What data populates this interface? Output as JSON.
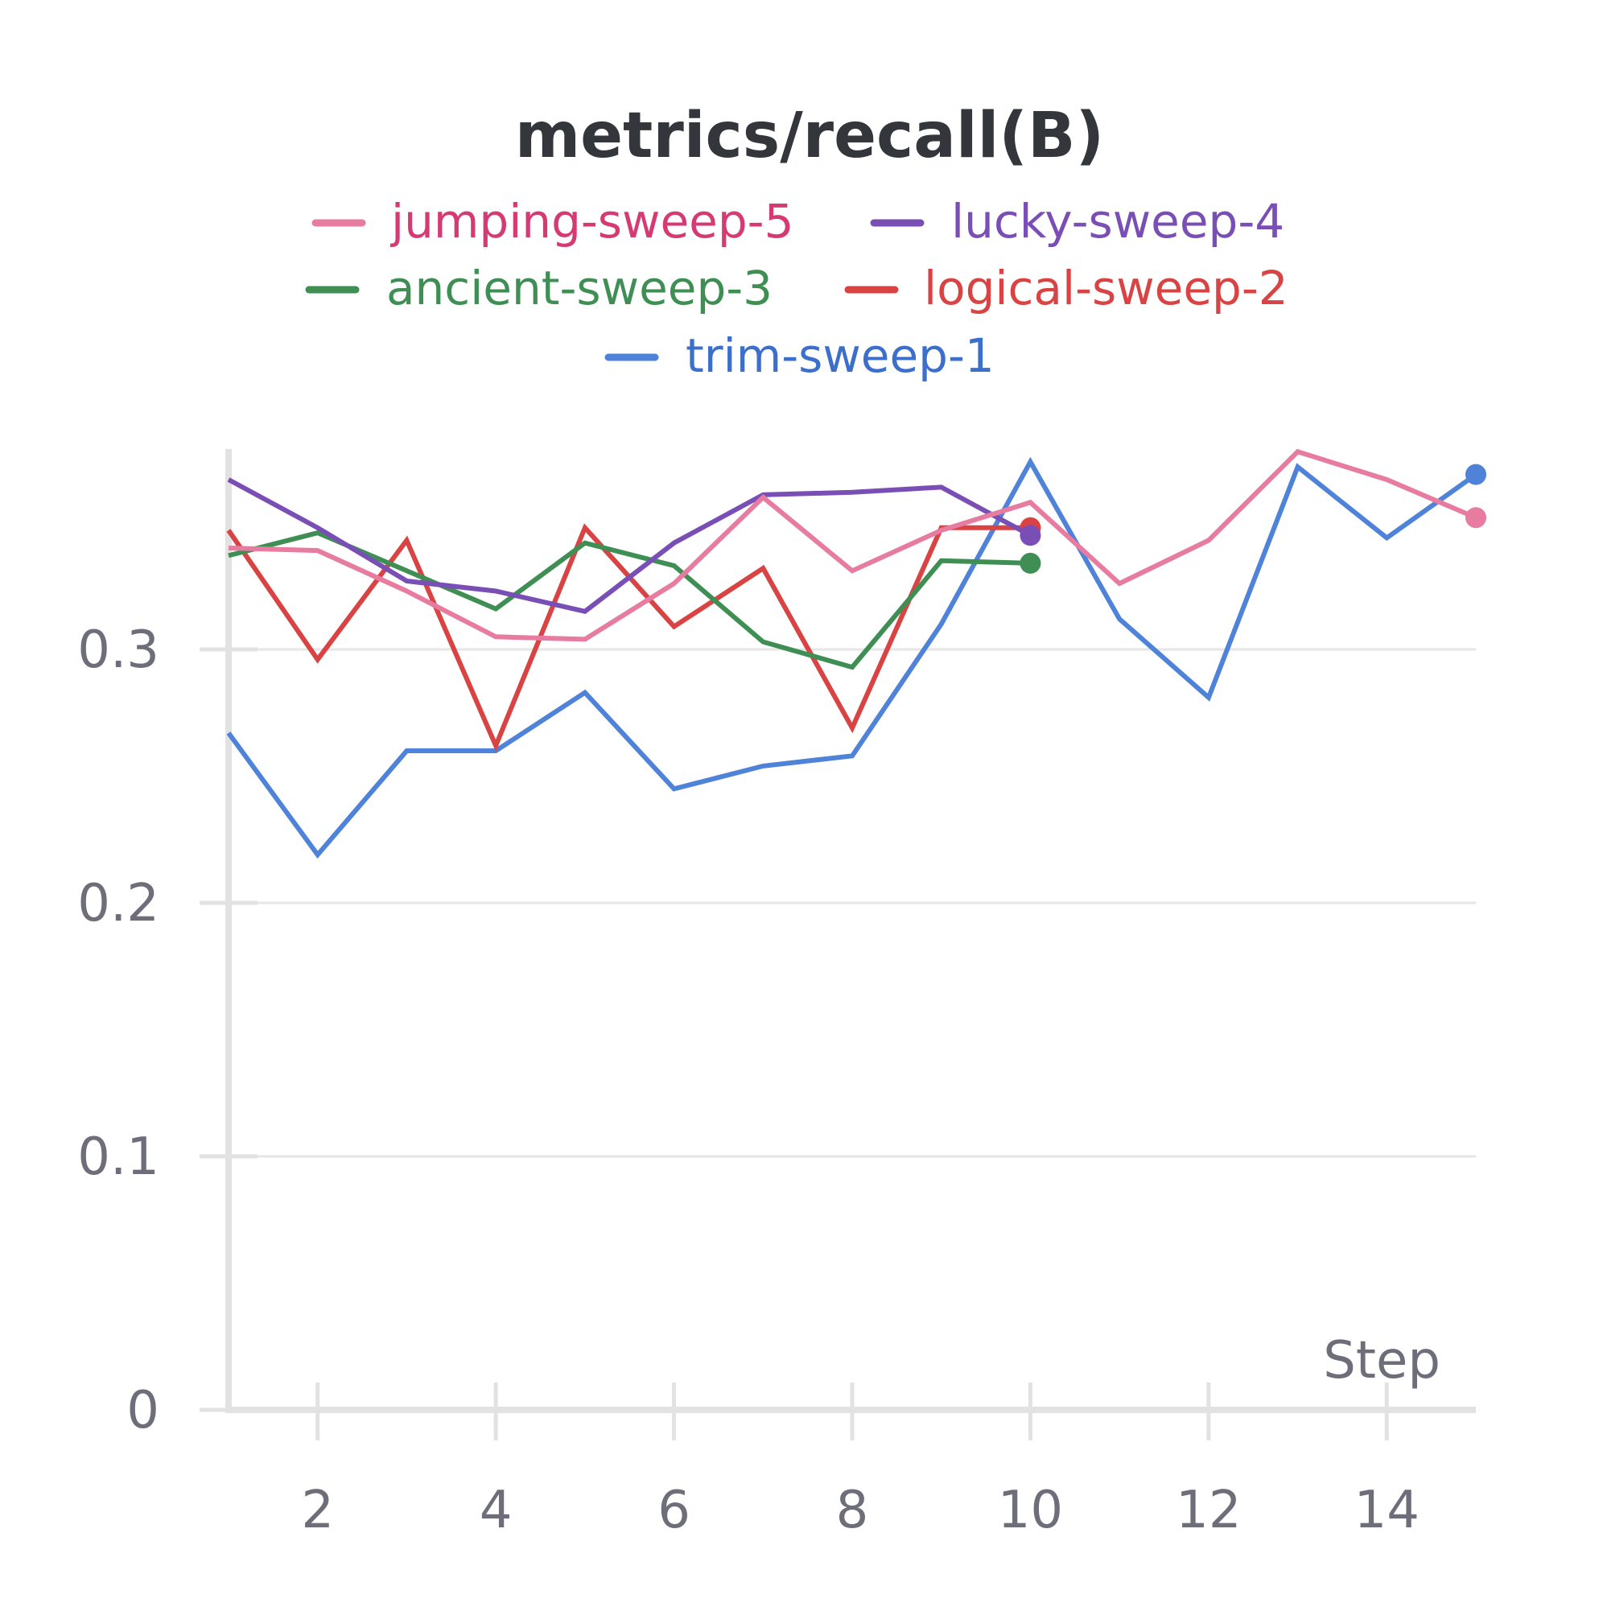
{
  "chart_data": {
    "type": "line",
    "title": "metrics/recall(B)",
    "xlabel": "Step",
    "ylabel": "",
    "xlim": [
      1,
      15
    ],
    "ylim": [
      0,
      0.38
    ],
    "x_ticks": [
      2,
      4,
      6,
      8,
      10,
      12,
      14
    ],
    "y_ticks": [
      0,
      0.1,
      0.2,
      0.3
    ],
    "y_tick_labels": [
      "0",
      "0.1",
      "0.2",
      "0.3"
    ],
    "grid": true,
    "legend_position": "top",
    "series": [
      {
        "name": "jumping-sweep-5",
        "color": "#e87ba0",
        "label_color": "#d63a73",
        "x": [
          1,
          2,
          3,
          4,
          5,
          6,
          7,
          8,
          9,
          10,
          11,
          12,
          13,
          14,
          15
        ],
        "y": [
          0.34,
          0.339,
          0.323,
          0.305,
          0.304,
          0.326,
          0.36,
          0.331,
          0.347,
          0.358,
          0.326,
          0.343,
          0.378,
          0.367,
          0.352
        ]
      },
      {
        "name": "lucky-sweep-4",
        "color": "#7a4fb5",
        "label_color": "#7a4fb5",
        "x": [
          1,
          2,
          3,
          4,
          5,
          6,
          7,
          8,
          9,
          10
        ],
        "y": [
          0.367,
          0.348,
          0.327,
          0.323,
          0.315,
          0.342,
          0.361,
          0.362,
          0.364,
          0.345
        ]
      },
      {
        "name": "ancient-sweep-3",
        "color": "#3f8f55",
        "label_color": "#3f8f55",
        "x": [
          1,
          2,
          3,
          4,
          5,
          6,
          7,
          8,
          9,
          10
        ],
        "y": [
          0.337,
          0.346,
          0.331,
          0.316,
          0.342,
          0.333,
          0.303,
          0.293,
          0.335,
          0.334
        ]
      },
      {
        "name": "logical-sweep-2",
        "color": "#d94343",
        "label_color": "#d94343",
        "x": [
          1,
          2,
          3,
          4,
          5,
          6,
          7,
          8,
          9,
          10
        ],
        "y": [
          0.347,
          0.296,
          0.343,
          0.262,
          0.348,
          0.309,
          0.332,
          0.269,
          0.348,
          0.348
        ]
      },
      {
        "name": "trim-sweep-1",
        "color": "#4f83d9",
        "label_color": "#3c6fcc",
        "x": [
          1,
          2,
          3,
          4,
          5,
          6,
          7,
          8,
          9,
          10,
          11,
          12,
          13,
          14,
          15
        ],
        "y": [
          0.267,
          0.219,
          0.26,
          0.26,
          0.283,
          0.245,
          0.254,
          0.258,
          0.31,
          0.374,
          0.312,
          0.281,
          0.372,
          0.344,
          0.369
        ]
      }
    ]
  }
}
